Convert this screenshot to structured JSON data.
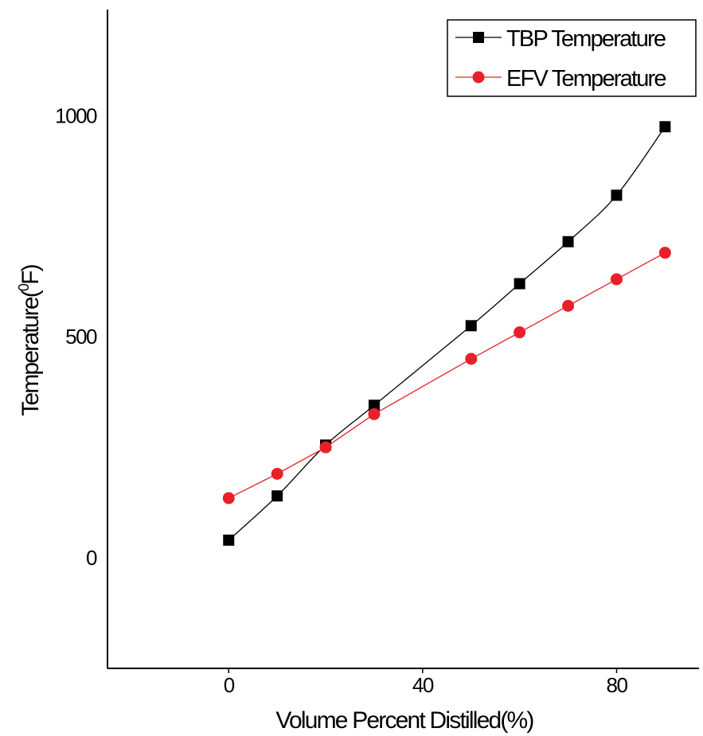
{
  "chart_data": {
    "type": "line",
    "title": "",
    "xlabel": "Volume Percent Distilled(%)",
    "ylabel_main": "Temperature(",
    "ylabel_sup": "0",
    "ylabel_unit": "F)",
    "xlim": [
      -25,
      97
    ],
    "ylim": [
      -250,
      1240
    ],
    "x_ticks": [
      0,
      40,
      80
    ],
    "y_ticks": [
      0,
      500,
      1000
    ],
    "x_tick_labels": [
      "0",
      "40",
      "80"
    ],
    "y_tick_labels": [
      "0",
      "500",
      "1000"
    ],
    "grid": false,
    "legend_position": "top-right",
    "series": [
      {
        "name": "TBP Temperature",
        "marker": "square",
        "color": "#000000",
        "x": [
          0,
          10,
          20,
          30,
          50,
          60,
          70,
          80,
          90
        ],
        "y": [
          40,
          140,
          255,
          345,
          525,
          620,
          715,
          820,
          975
        ]
      },
      {
        "name": "EFV Temperature",
        "marker": "circle",
        "color": "#e8202a",
        "x": [
          0,
          10,
          20,
          30,
          50,
          60,
          70,
          80,
          90
        ],
        "y": [
          135,
          190,
          250,
          325,
          450,
          510,
          570,
          630,
          690
        ]
      }
    ]
  }
}
